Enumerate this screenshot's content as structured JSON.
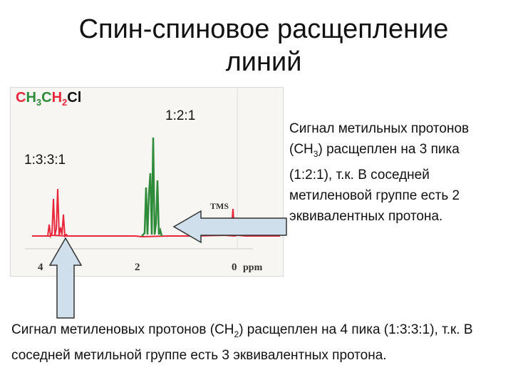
{
  "slide": {
    "title": "Спин-спиновое расщепление линий"
  },
  "formula": {
    "c1": "C",
    "h1": "H",
    "n1": "3",
    "c2": "C",
    "h2": "H",
    "n2": "2",
    "cl": "Cl"
  },
  "spectrum": {
    "ratio_methyl": "1:2:1",
    "ratio_methylene": "1:3:3:1",
    "tms_label": "TMS",
    "axis_ticks": [
      "4",
      "2",
      "0"
    ],
    "axis_unit": "ppm",
    "colors": {
      "methyl_peaks": "#2e8b3a",
      "methylene_peaks": "#e8283a",
      "baseline": "#e8283a",
      "tms": "#e8283a"
    }
  },
  "annotations": {
    "methyl_text_a": "Сигнал метильных протонов (CH",
    "methyl_sub": "3",
    "methyl_text_b": ") расщеплен на 3 пика (1:2:1), т.к. В соседней метиленовой группе есть 2 эквивалентных протона.",
    "methylene_text_a": "Сигнал метиленовых протонов (CH",
    "methylene_sub": "2",
    "methylene_text_b": ") расщеплен на 4 пика (1:3:3:1), т.к. В соседней метильной группе есть 3 эквивалентных протона."
  }
}
